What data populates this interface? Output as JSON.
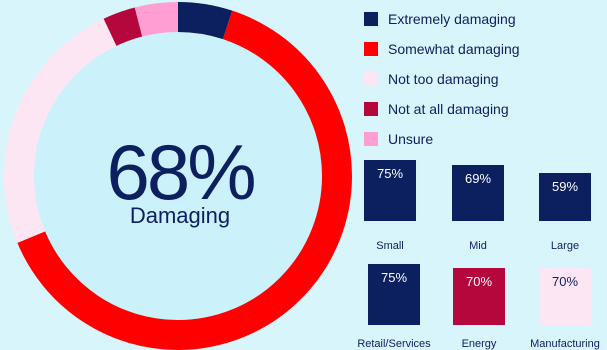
{
  "center": {
    "value": "68%",
    "label": "Damaging"
  },
  "legend": [
    {
      "label": "Extremely damaging",
      "color": "#0c1f5e"
    },
    {
      "label": "Somewhat damaging",
      "color": "#ff0000"
    },
    {
      "label": "Not too damaging",
      "color": "#fde6f3"
    },
    {
      "label": "Not at all damaging",
      "color": "#b5073c"
    },
    {
      "label": "Unsure",
      "color": "#ff9ed2"
    }
  ],
  "chart_data": [
    {
      "type": "pie",
      "donut": true,
      "categories": [
        "Extremely damaging",
        "Somewhat damaging",
        "Not too damaging",
        "Not at all damaging",
        "Unsure"
      ],
      "values": [
        5,
        63,
        24,
        3,
        4
      ],
      "colors": [
        "#0c1f5e",
        "#ff0000",
        "#fde6f3",
        "#b5073c",
        "#ff9ed2"
      ]
    },
    {
      "type": "bar",
      "categories": [
        "Small",
        "Mid",
        "Large",
        "Retail/Services",
        "Energy",
        "Manufacturing"
      ],
      "values": [
        75,
        69,
        59,
        75,
        70,
        70
      ],
      "labels": [
        "75%",
        "69%",
        "59%",
        "75%",
        "70%",
        "70%"
      ],
      "colors": [
        "#0c1f5e",
        "#0c1f5e",
        "#0c1f5e",
        "#0c1f5e",
        "#b5073c",
        "#fde6f3"
      ],
      "ylim": [
        0,
        100
      ]
    }
  ]
}
